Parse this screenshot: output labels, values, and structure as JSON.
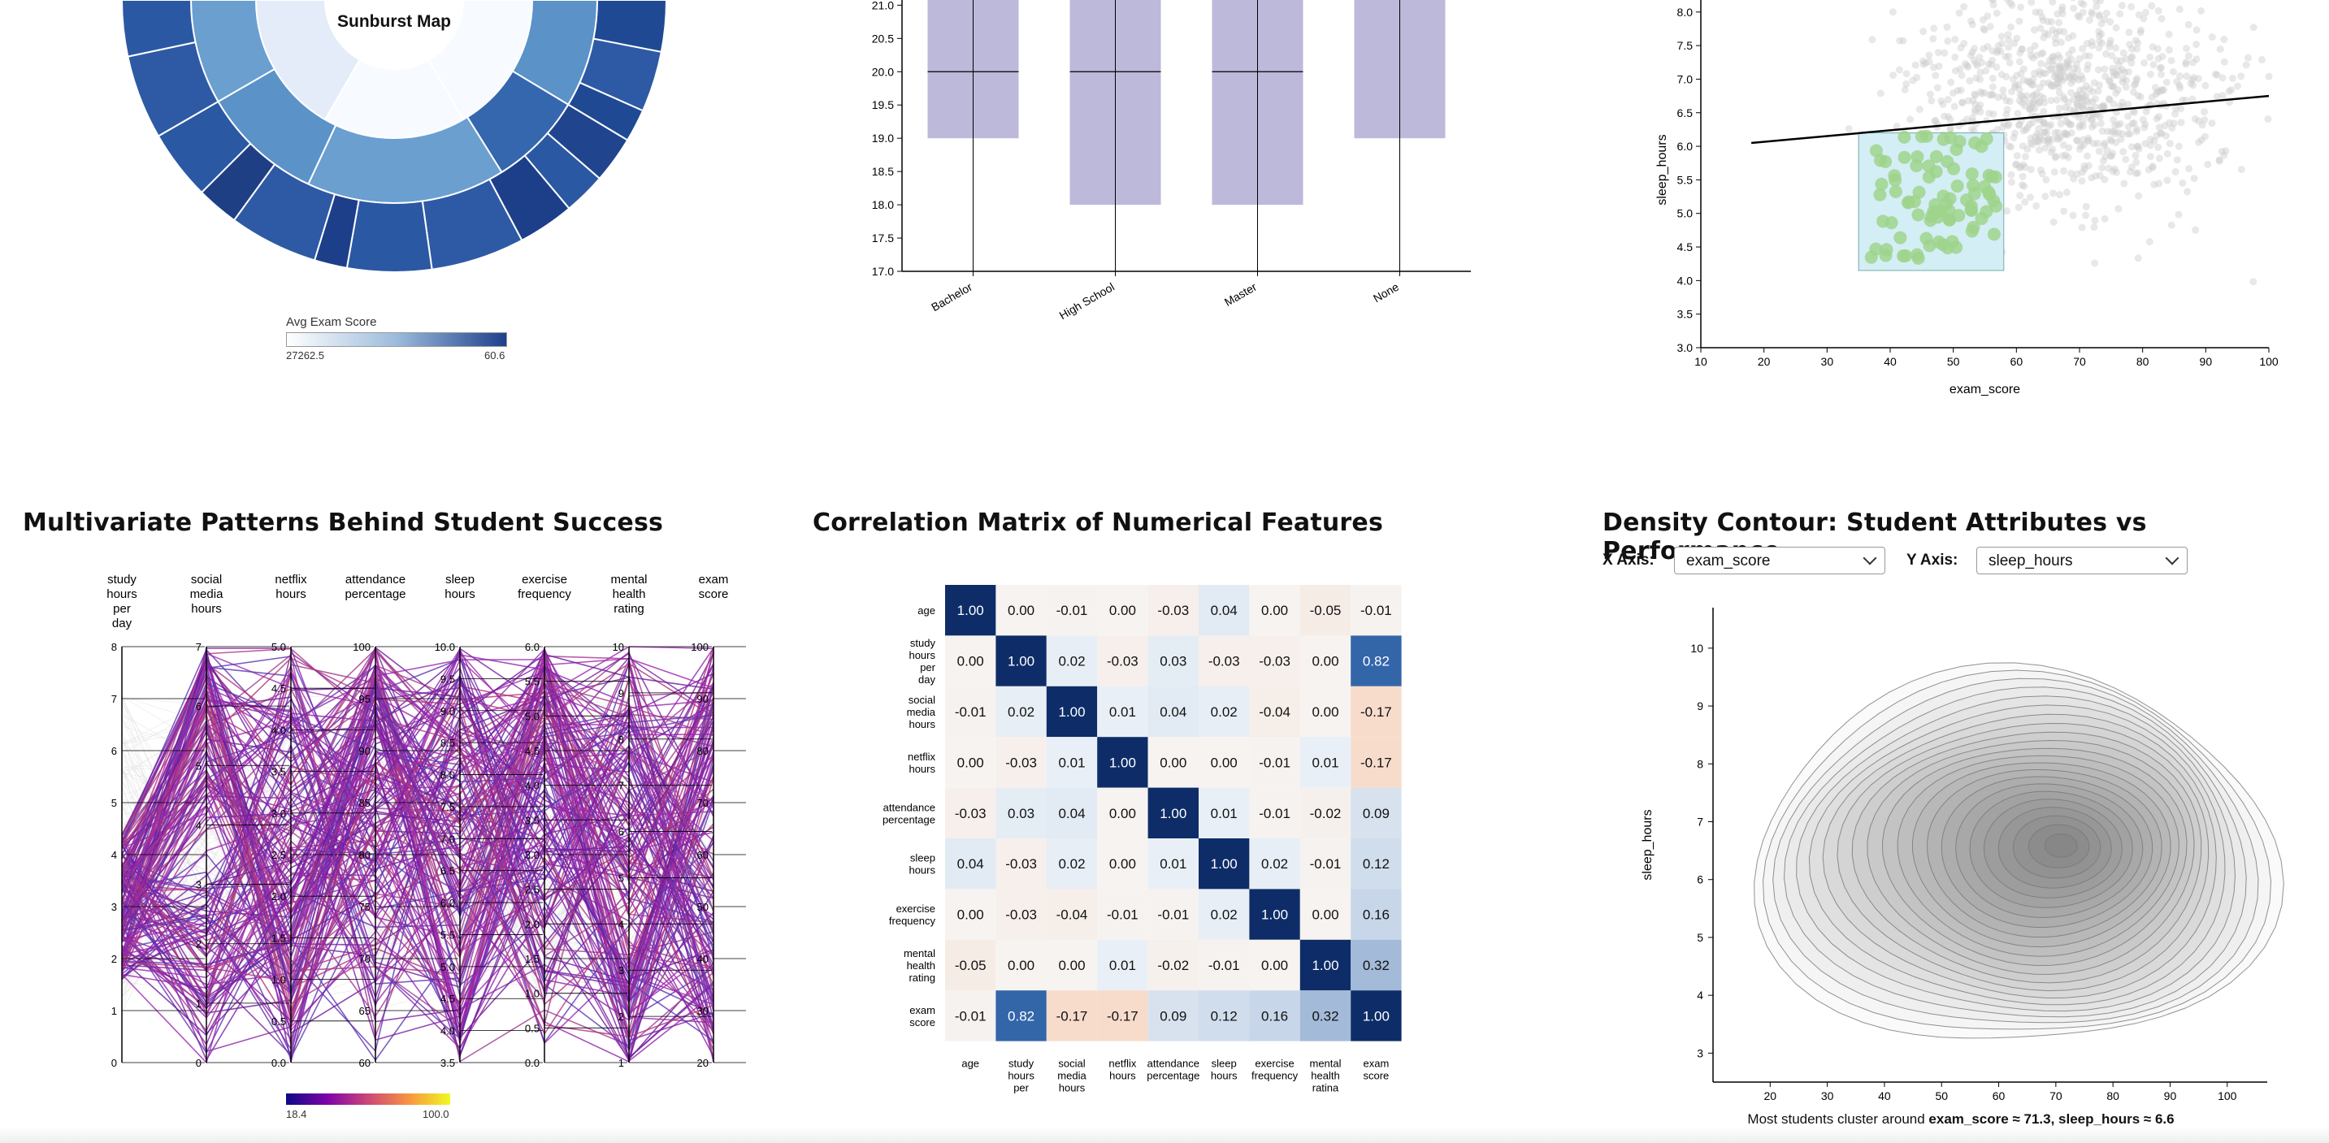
{
  "sunburst": {
    "center_label": "Sunburst Map",
    "legend": {
      "title": "Avg Exam Score",
      "min_label": "27262.5",
      "max_label": "60.6"
    }
  },
  "boxplot": {
    "chart_data": {
      "type": "box",
      "categories": [
        "Bachelor",
        "High School",
        "Master",
        "None"
      ],
      "ylim": [
        17.0,
        21.2
      ],
      "yticks": [
        "17.0",
        "17.5",
        "18.0",
        "18.5",
        "19.0",
        "19.5",
        "20.0",
        "20.5",
        "21.0"
      ],
      "boxes": [
        {
          "category": "Bachelor",
          "q1": 19.0,
          "median": 20.0,
          "q3": 21.2,
          "min": 17.0,
          "max": 21.2
        },
        {
          "category": "High School",
          "q1": 18.0,
          "median": 20.0,
          "q3": 21.2,
          "min": 17.0,
          "max": 21.2
        },
        {
          "category": "Master",
          "q1": 18.0,
          "median": 20.0,
          "q3": 21.2,
          "min": 17.0,
          "max": 21.2
        },
        {
          "category": "None",
          "q1": 19.0,
          "median": 21.1,
          "q3": 21.2,
          "min": 17.0,
          "max": 21.2
        }
      ],
      "color": "#bcb9da"
    }
  },
  "scatter": {
    "chart_data": {
      "type": "scatter",
      "xlabel": "exam_score",
      "ylabel": "sleep_hours",
      "xlim": [
        10,
        100
      ],
      "ylim": [
        3.0,
        8.3
      ],
      "xticks": [
        "10",
        "20",
        "30",
        "40",
        "50",
        "60",
        "70",
        "80",
        "90",
        "100"
      ],
      "yticks": [
        "3.0",
        "3.5",
        "4.0",
        "4.5",
        "5.0",
        "5.5",
        "6.0",
        "6.5",
        "7.0",
        "7.5",
        "8.0"
      ],
      "trend_line": {
        "x": [
          18,
          100
        ],
        "y": [
          6.05,
          6.75
        ]
      },
      "brush": {
        "x": [
          35,
          58
        ],
        "y": [
          4.15,
          6.2
        ]
      },
      "colors": {
        "points": "#cccccc",
        "selected": "#9fd48c",
        "brush": "#d3eef5"
      }
    }
  },
  "parallel": {
    "title": "Multivariate Patterns Behind Student Success",
    "axes": [
      {
        "label": [
          "study",
          "hours",
          "per",
          "day"
        ],
        "ticks": [
          "0",
          "1",
          "2",
          "3",
          "4",
          "5",
          "6",
          "7",
          "8"
        ]
      },
      {
        "label": [
          "social",
          "media",
          "hours"
        ],
        "ticks": [
          "0",
          "1",
          "2",
          "3",
          "4",
          "5",
          "6",
          "7"
        ]
      },
      {
        "label": [
          "netflix",
          "hours"
        ],
        "ticks": [
          "0.0",
          "0.5",
          "1.0",
          "1.5",
          "2.0",
          "2.5",
          "3.0",
          "3.5",
          "4.0",
          "4.5",
          "5.0"
        ]
      },
      {
        "label": [
          "attendance",
          "percentage"
        ],
        "ticks": [
          "60",
          "65",
          "70",
          "75",
          "80",
          "85",
          "90",
          "95",
          "100"
        ]
      },
      {
        "label": [
          "sleep",
          "hours"
        ],
        "ticks": [
          "3.5",
          "4.0",
          "4.5",
          "5.0",
          "5.5",
          "6.0",
          "6.5",
          "7.0",
          "7.5",
          "8.0",
          "8.5",
          "9.0",
          "9.5",
          "10.0"
        ]
      },
      {
        "label": [
          "exercise",
          "frequency"
        ],
        "ticks": [
          "0.0",
          "0.5",
          "1.0",
          "1.5",
          "2.0",
          "2.5",
          "3.0",
          "3.5",
          "4.0",
          "4.5",
          "5.0",
          "5.5",
          "6.0"
        ]
      },
      {
        "label": [
          "mental",
          "health",
          "rating"
        ],
        "ticks": [
          "1",
          "2",
          "3",
          "4",
          "5",
          "6",
          "7",
          "8",
          "9",
          "10"
        ]
      },
      {
        "label": [
          "exam",
          "score"
        ],
        "ticks": [
          "20",
          "30",
          "40",
          "50",
          "60",
          "70",
          "80",
          "90",
          "100"
        ]
      }
    ],
    "legend": {
      "min_label": "18.4",
      "max_label": "100.0"
    }
  },
  "correlation": {
    "title": "Correlation Matrix of Numerical Features",
    "chart_data": {
      "type": "heatmap",
      "row_labels": [
        [
          "age"
        ],
        [
          "study",
          "hours",
          "per",
          "day"
        ],
        [
          "social",
          "media",
          "hours"
        ],
        [
          "netflix",
          "hours"
        ],
        [
          "attendance",
          "percentage"
        ],
        [
          "sleep",
          "hours"
        ],
        [
          "exercise",
          "frequency"
        ],
        [
          "mental",
          "health",
          "rating"
        ],
        [
          "exam",
          "score"
        ]
      ],
      "col_labels": [
        [
          "age"
        ],
        [
          "study",
          "hours",
          "per"
        ],
        [
          "social",
          "media",
          "hours"
        ],
        [
          "netflix",
          "hours"
        ],
        [
          "attendance",
          "percentage"
        ],
        [
          "sleep",
          "hours"
        ],
        [
          "exercise",
          "frequency"
        ],
        [
          "mental",
          "health",
          "ratina"
        ],
        [
          "exam",
          "score"
        ]
      ],
      "values": [
        [
          1.0,
          0.0,
          -0.01,
          -0.0,
          -0.03,
          0.04,
          -0.0,
          -0.05,
          -0.01
        ],
        [
          0.0,
          1.0,
          0.02,
          -0.03,
          0.03,
          -0.03,
          -0.03,
          -0.0,
          0.82
        ],
        [
          -0.01,
          0.02,
          1.0,
          0.01,
          0.04,
          0.02,
          -0.04,
          0.0,
          -0.17
        ],
        [
          -0.0,
          -0.03,
          0.01,
          1.0,
          -0.0,
          -0.0,
          -0.01,
          0.01,
          -0.17
        ],
        [
          -0.03,
          0.03,
          0.04,
          -0.0,
          1.0,
          0.01,
          -0.01,
          -0.02,
          0.09
        ],
        [
          0.04,
          -0.03,
          0.02,
          -0.0,
          0.01,
          1.0,
          0.02,
          -0.01,
          0.12
        ],
        [
          -0.0,
          -0.03,
          -0.04,
          -0.01,
          -0.01,
          0.02,
          1.0,
          -0.0,
          0.16
        ],
        [
          -0.05,
          -0.0,
          0.0,
          0.01,
          -0.02,
          -0.01,
          -0.0,
          1.0,
          0.32
        ],
        [
          -0.01,
          0.82,
          -0.17,
          -0.17,
          0.09,
          0.12,
          0.16,
          0.32,
          1.0
        ]
      ]
    }
  },
  "density": {
    "title": "Density Contour: Student Attributes vs Performance",
    "x_axis_label": "X Axis:",
    "x_axis_value": "exam_score",
    "y_axis_label": "Y Axis:",
    "y_axis_value": "sleep_hours",
    "chart_data": {
      "type": "contour",
      "ylabel": "sleep_hours",
      "xlim": [
        10,
        107
      ],
      "ylim": [
        2.5,
        10.7
      ],
      "xticks": [
        "20",
        "30",
        "40",
        "50",
        "60",
        "70",
        "80",
        "90",
        "100"
      ],
      "yticks": [
        "3",
        "4",
        "5",
        "6",
        "7",
        "8",
        "9",
        "10"
      ],
      "peak": {
        "x": 71.3,
        "y": 6.6
      }
    },
    "caption_prefix": "Most students cluster around ",
    "caption_bold": "exam_score ≈ 71.3, sleep_hours ≈ 6.6"
  }
}
